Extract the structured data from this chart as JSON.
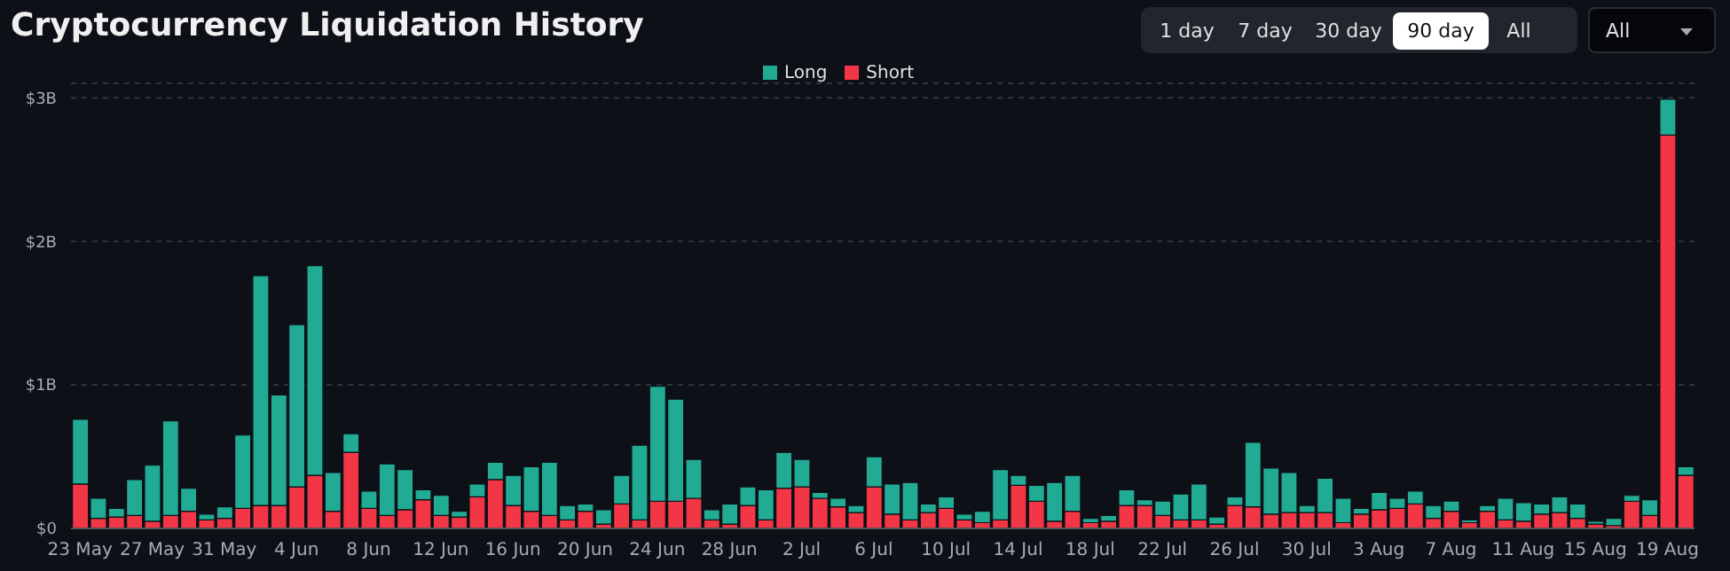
{
  "chart_data": {
    "type": "bar",
    "title": "Cryptocurrency Liquidation History",
    "stacked": true,
    "grid": "y",
    "legend": "top",
    "annotations": [
      "1 day",
      "7 day",
      "30 day",
      "90 day",
      "All",
      "All"
    ],
    "categories": [
      "23 May",
      null,
      null,
      null,
      "27 May",
      null,
      null,
      null,
      "31 May",
      null,
      null,
      null,
      "4 Jun",
      null,
      null,
      null,
      "8 Jun",
      null,
      null,
      null,
      "12 Jun",
      null,
      null,
      null,
      "16 Jun",
      null,
      null,
      null,
      "20 Jun",
      null,
      null,
      null,
      "24 Jun",
      null,
      null,
      null,
      "28 Jun",
      null,
      null,
      null,
      "2 Jul",
      null,
      null,
      null,
      "6 Jul",
      null,
      null,
      null,
      "10 Jul",
      null,
      null,
      null,
      "14 Jul",
      null,
      null,
      null,
      "18 Jul",
      null,
      null,
      null,
      "22 Jul",
      null,
      null,
      null,
      "26 Jul",
      null,
      null,
      null,
      "30 Jul",
      null,
      null,
      null,
      "3 Aug",
      null,
      null,
      null,
      "7 Aug",
      null,
      null,
      null,
      "11 Aug",
      null,
      null,
      null,
      "15 Aug",
      null,
      null,
      null,
      "19 Aug",
      null
    ],
    "ylim": [
      0,
      3.1
    ],
    "yticks": [
      {
        "value": 0,
        "label": "$0"
      },
      {
        "value": 1,
        "label": "$1B"
      },
      {
        "value": 2,
        "label": "$2B"
      },
      {
        "value": 3,
        "label": "$3B"
      }
    ],
    "series": [
      {
        "name": "Short",
        "color": "#f23645",
        "values": [
          0.31,
          0.07,
          0.08,
          0.09,
          0.05,
          0.09,
          0.12,
          0.06,
          0.07,
          0.14,
          0.16,
          0.16,
          0.29,
          0.37,
          0.12,
          0.53,
          0.14,
          0.09,
          0.13,
          0.2,
          0.09,
          0.08,
          0.22,
          0.34,
          0.16,
          0.12,
          0.09,
          0.06,
          0.12,
          0.03,
          0.17,
          0.06,
          0.19,
          0.19,
          0.21,
          0.06,
          0.03,
          0.16,
          0.06,
          0.28,
          0.29,
          0.21,
          0.15,
          0.11,
          0.29,
          0.1,
          0.06,
          0.11,
          0.14,
          0.06,
          0.04,
          0.06,
          0.3,
          0.19,
          0.05,
          0.12,
          0.04,
          0.05,
          0.16,
          0.16,
          0.09,
          0.06,
          0.06,
          0.03,
          0.16,
          0.15,
          0.1,
          0.11,
          0.11,
          0.11,
          0.04,
          0.1,
          0.13,
          0.14,
          0.17,
          0.07,
          0.12,
          0.04,
          0.12,
          0.06,
          0.05,
          0.1,
          0.11,
          0.07,
          0.03,
          0.02,
          0.19,
          0.09,
          2.74,
          0.37
        ]
      },
      {
        "name": "Long",
        "color": "#22ab94",
        "values": [
          0.45,
          0.14,
          0.06,
          0.25,
          0.39,
          0.66,
          0.16,
          0.04,
          0.08,
          0.51,
          1.6,
          0.77,
          1.13,
          1.46,
          0.27,
          0.13,
          0.12,
          0.36,
          0.28,
          0.07,
          0.14,
          0.04,
          0.09,
          0.12,
          0.21,
          0.31,
          0.37,
          0.1,
          0.05,
          0.1,
          0.2,
          0.52,
          0.8,
          0.71,
          0.27,
          0.07,
          0.14,
          0.13,
          0.21,
          0.25,
          0.19,
          0.04,
          0.06,
          0.05,
          0.21,
          0.21,
          0.26,
          0.06,
          0.08,
          0.04,
          0.08,
          0.35,
          0.07,
          0.11,
          0.27,
          0.25,
          0.03,
          0.04,
          0.11,
          0.04,
          0.1,
          0.18,
          0.25,
          0.05,
          0.06,
          0.45,
          0.32,
          0.28,
          0.05,
          0.24,
          0.17,
          0.04,
          0.12,
          0.07,
          0.09,
          0.09,
          0.07,
          0.02,
          0.04,
          0.15,
          0.13,
          0.07,
          0.11,
          0.1,
          0.02,
          0.05,
          0.04,
          0.11,
          0.25,
          0.06
        ]
      }
    ]
  }
}
